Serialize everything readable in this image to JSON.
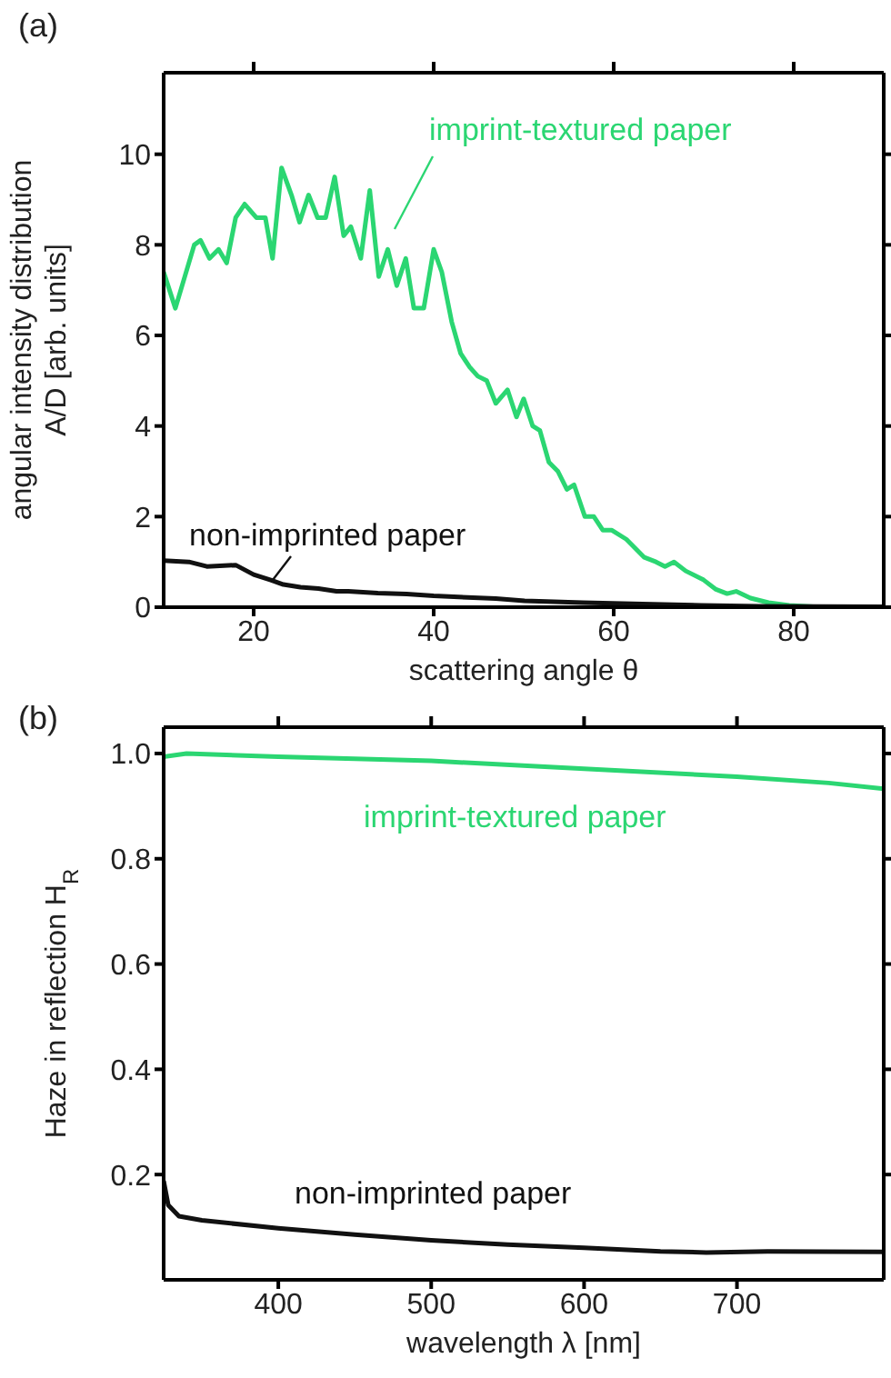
{
  "chart_data": [
    {
      "type": "line",
      "title": "(a)",
      "xlabel": "scattering angle θ",
      "ylabel": "angular intensity distribution\nA/D [arb. units]",
      "xlim": [
        10,
        90
      ],
      "ylim": [
        0,
        11.8
      ],
      "xticks": [
        20,
        40,
        60,
        80
      ],
      "yticks": [
        0,
        2,
        4,
        6,
        8,
        10
      ],
      "series": [
        {
          "name": "imprint-textured paper",
          "color": "#2bd672",
          "x": [
            10,
            11.3,
            13.4,
            14.1,
            15.1,
            16.1,
            17,
            18,
            19,
            20.3,
            21.3,
            22.1,
            23.1,
            24.2,
            25.1,
            26.1,
            27.1,
            28,
            29,
            30,
            30.8,
            31.9,
            32.9,
            33.9,
            34.9,
            35.9,
            36.9,
            37.8,
            38.9,
            40,
            40.9,
            42,
            43,
            44,
            44.9,
            45.9,
            46.9,
            48.2,
            49.2,
            50,
            51,
            51.8,
            52.8,
            53.8,
            54.8,
            55.6,
            56.8,
            57.8,
            58.8,
            59.8,
            61.4,
            63.4,
            64.7,
            65.7,
            66.7,
            68,
            70,
            71.3,
            72.6,
            73.6,
            75.2,
            77.2,
            79.5,
            83.1,
            90
          ],
          "values": [
            7.4,
            6.6,
            8,
            8.1,
            7.7,
            7.9,
            7.6,
            8.6,
            8.9,
            8.6,
            8.6,
            7.7,
            9.7,
            9.1,
            8.5,
            9.1,
            8.6,
            8.6,
            9.5,
            8.2,
            8.4,
            7.7,
            9.2,
            7.3,
            7.9,
            7.1,
            7.7,
            6.6,
            6.6,
            7.9,
            7.4,
            6.3,
            5.6,
            5.3,
            5.1,
            5,
            4.5,
            4.8,
            4.2,
            4.6,
            4,
            3.9,
            3.2,
            3,
            2.6,
            2.7,
            2,
            2,
            1.7,
            1.7,
            1.5,
            1.1,
            1,
            0.9,
            1,
            0.8,
            0.6,
            0.4,
            0.3,
            0.35,
            0.2,
            0.1,
            0.04,
            0,
            0
          ]
        },
        {
          "name": "non-imprinted paper",
          "color": "#111111",
          "x": [
            10,
            12.8,
            14.8,
            18,
            20,
            21.9,
            23.3,
            25.2,
            27.2,
            29.2,
            30.5,
            33.8,
            37,
            40,
            46.9,
            50.1,
            56.6,
            63.2,
            69.7,
            76.3,
            90
          ],
          "values": [
            1.03,
            1,
            0.9,
            0.93,
            0.72,
            0.6,
            0.5,
            0.44,
            0.41,
            0.35,
            0.35,
            0.31,
            0.29,
            0.25,
            0.19,
            0.14,
            0.1,
            0.07,
            0.04,
            0.02,
            0.01
          ]
        }
      ]
    },
    {
      "type": "line",
      "title": "(b)",
      "xlabel": "wavelength λ [nm]",
      "ylabel": "Haze in reflection H$_{R}$",
      "xlim": [
        325,
        796
      ],
      "ylim": [
        0,
        1.05
      ],
      "xticks": [
        400,
        500,
        600,
        700
      ],
      "yticks": [
        0.2,
        0.4,
        0.6,
        0.8,
        {
          "value": 1,
          "label": "1.0"
        }
      ],
      "series": [
        {
          "name": "imprint-textured paper",
          "color": "#2bd672",
          "x": [
            325,
            340,
            400,
            500,
            600,
            700,
            760,
            796
          ],
          "values": [
            0.994,
            1,
            0.994,
            0.986,
            0.971,
            0.956,
            0.944,
            0.933
          ]
        },
        {
          "name": "non-imprinted paper",
          "color": "#111111",
          "x": [
            325,
            328,
            335,
            350,
            400,
            450,
            500,
            550,
            600,
            650,
            680,
            720,
            796
          ],
          "values": [
            0.188,
            0.142,
            0.121,
            0.113,
            0.098,
            0.086,
            0.075,
            0.067,
            0.061,
            0.054,
            0.052,
            0.054,
            0.053
          ]
        }
      ]
    }
  ]
}
